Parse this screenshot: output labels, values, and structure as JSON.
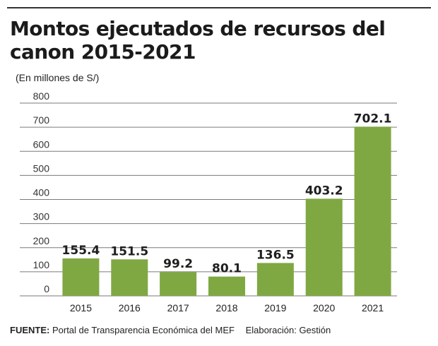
{
  "chart_data": {
    "type": "bar",
    "title": "Montos ejecutados de recursos del canon 2015-2021",
    "subtitle": "(En millones de S/)",
    "categories": [
      "2015",
      "2016",
      "2017",
      "2018",
      "2019",
      "2020",
      "2021"
    ],
    "values": [
      155.4,
      151.5,
      99.2,
      80.1,
      136.5,
      403.2,
      702.1
    ],
    "data_labels": [
      "155.4",
      "151.5",
      "99.2",
      "80.1",
      "136.5",
      "403.2",
      "702.1"
    ],
    "y_ticks": [
      "0",
      "100",
      "200",
      "300",
      "400",
      "500",
      "600",
      "700",
      "800"
    ],
    "ylim": [
      0,
      800
    ],
    "grid": true,
    "bar_color": "#7fa843"
  },
  "footer": {
    "source_label": "FUENTE:",
    "source_text": "Portal de Transparencia Económica del MEF",
    "credit": "Elaboración: Gestión"
  }
}
